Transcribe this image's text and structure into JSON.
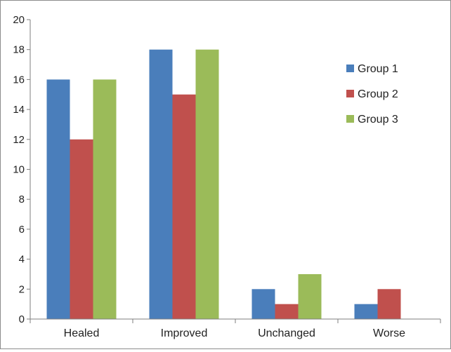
{
  "chart_data": {
    "type": "bar",
    "categories": [
      "Healed",
      "Improved",
      "Unchanged",
      "Worse"
    ],
    "series": [
      {
        "name": "Group 1",
        "color": "#4a7ebb",
        "values": [
          16,
          18,
          2,
          1
        ]
      },
      {
        "name": "Group 2",
        "color": "#c0504d",
        "values": [
          12,
          15,
          1,
          2
        ]
      },
      {
        "name": "Group 3",
        "color": "#9bbb59",
        "values": [
          16,
          18,
          3,
          0
        ]
      }
    ],
    "ylim": [
      0,
      20
    ],
    "yticks": [
      "0",
      "2",
      "4",
      "6",
      "8",
      "10",
      "12",
      "14",
      "16",
      "18",
      "20"
    ],
    "title": "",
    "xlabel": "",
    "ylabel": "",
    "grid": false,
    "legend": "right"
  }
}
